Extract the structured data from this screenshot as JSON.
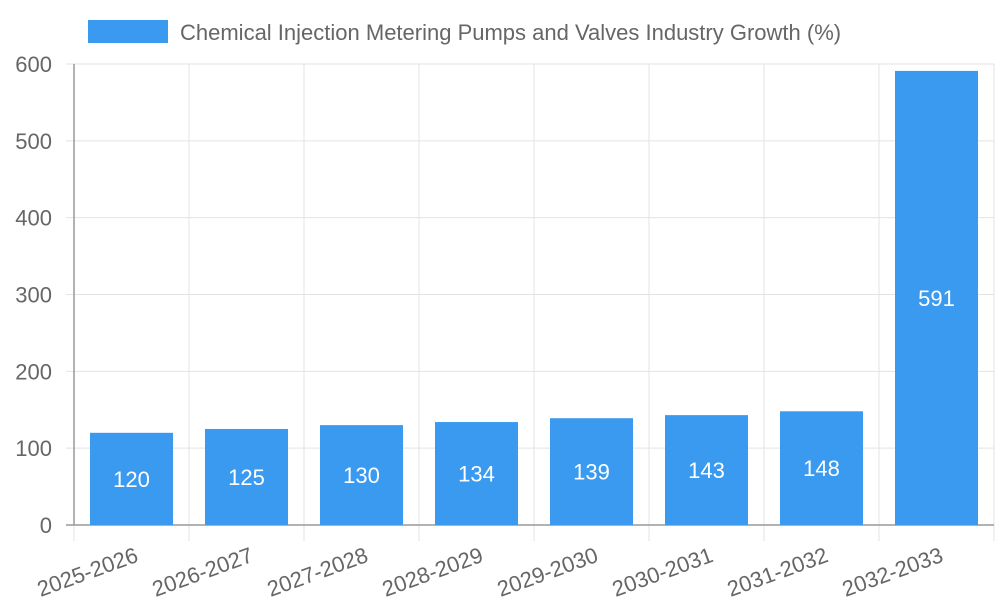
{
  "chart_data": {
    "type": "bar",
    "categories": [
      "2025-2026",
      "2026-2027",
      "2027-2028",
      "2028-2029",
      "2029-2030",
      "2030-2031",
      "2031-2032",
      "2032-2033"
    ],
    "series": [
      {
        "name": "Chemical Injection Metering Pumps and Valves Industry Growth (%)",
        "values": [
          120,
          125,
          130,
          134,
          139,
          143,
          148,
          591
        ],
        "color": "#3a9af0"
      }
    ],
    "ylim": [
      0,
      600
    ],
    "yticks": [
      0,
      100,
      200,
      300,
      400,
      500,
      600
    ],
    "grid": true,
    "legend_position": "top"
  }
}
